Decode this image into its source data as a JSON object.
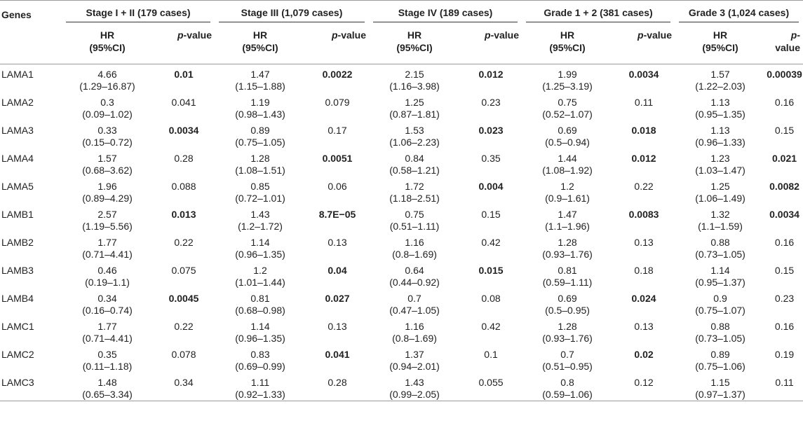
{
  "header": {
    "genes_label": "Genes",
    "groups": [
      "Stage I + II (179 cases)",
      "Stage III (1,079 cases)",
      "Stage IV (189 cases)",
      "Grade 1 + 2 (381 cases)",
      "Grade 3 (1,024 cases)"
    ],
    "hr_line1": "HR",
    "hr_line2": "(95%CI)",
    "p_italic": "p",
    "p_suffix": "-value"
  },
  "rows": [
    {
      "gene": "LAMA1",
      "cells": [
        {
          "hr": "4.66",
          "ci": "(1.29–16.87)",
          "p": "0.01",
          "bold": true
        },
        {
          "hr": "1.47",
          "ci": "(1.15–1.88)",
          "p": "0.0022",
          "bold": true
        },
        {
          "hr": "2.15",
          "ci": "(1.16–3.98)",
          "p": "0.012",
          "bold": true
        },
        {
          "hr": "1.99",
          "ci": "(1.25–3.19)",
          "p": "0.0034",
          "bold": true
        },
        {
          "hr": "1.57",
          "ci": "(1.22–2.03)",
          "p": "0.00039",
          "bold": true
        }
      ]
    },
    {
      "gene": "LAMA2",
      "cells": [
        {
          "hr": "0.3",
          "ci": "(0.09–1.02)",
          "p": "0.041",
          "bold": false
        },
        {
          "hr": "1.19",
          "ci": "(0.98–1.43)",
          "p": "0.079",
          "bold": false
        },
        {
          "hr": "1.25",
          "ci": "(0.87–1.81)",
          "p": "0.23",
          "bold": false
        },
        {
          "hr": "0.75",
          "ci": "(0.52–1.07)",
          "p": "0.11",
          "bold": false
        },
        {
          "hr": "1.13",
          "ci": "(0.95–1.35)",
          "p": "0.16",
          "bold": false
        }
      ]
    },
    {
      "gene": "LAMA3",
      "cells": [
        {
          "hr": "0.33",
          "ci": "(0.15–0.72)",
          "p": "0.0034",
          "bold": true
        },
        {
          "hr": "0.89",
          "ci": "(0.75–1.05)",
          "p": "0.17",
          "bold": false
        },
        {
          "hr": "1.53",
          "ci": "(1.06–2.23)",
          "p": "0.023",
          "bold": true
        },
        {
          "hr": "0.69",
          "ci": "(0.5–0.94)",
          "p": "0.018",
          "bold": true
        },
        {
          "hr": "1.13",
          "ci": "(0.96–1.33)",
          "p": "0.15",
          "bold": false
        }
      ]
    },
    {
      "gene": "LAMA4",
      "cells": [
        {
          "hr": "1.57",
          "ci": "(0.68–3.62)",
          "p": "0.28",
          "bold": false
        },
        {
          "hr": "1.28",
          "ci": "(1.08–1.51)",
          "p": "0.0051",
          "bold": true
        },
        {
          "hr": "0.84",
          "ci": "(0.58–1.21)",
          "p": "0.35",
          "bold": false
        },
        {
          "hr": "1.44",
          "ci": "(1.08–1.92)",
          "p": "0.012",
          "bold": true
        },
        {
          "hr": "1.23",
          "ci": "(1.03–1.47)",
          "p": "0.021",
          "bold": true
        }
      ]
    },
    {
      "gene": "LAMA5",
      "cells": [
        {
          "hr": "1.96",
          "ci": "(0.89–4.29)",
          "p": "0.088",
          "bold": false
        },
        {
          "hr": "0.85",
          "ci": "(0.72–1.01)",
          "p": "0.06",
          "bold": false
        },
        {
          "hr": "1.72",
          "ci": "(1.18–2.51)",
          "p": "0.004",
          "bold": true
        },
        {
          "hr": "1.2",
          "ci": "(0.9–1.61)",
          "p": "0.22",
          "bold": false
        },
        {
          "hr": "1.25",
          "ci": "(1.06–1.49)",
          "p": "0.0082",
          "bold": true
        }
      ]
    },
    {
      "gene": "LAMB1",
      "cells": [
        {
          "hr": "2.57",
          "ci": "(1.19–5.56)",
          "p": "0.013",
          "bold": true
        },
        {
          "hr": "1.43",
          "ci": "(1.2–1.72)",
          "p": "8.7E−05",
          "bold": true
        },
        {
          "hr": "0.75",
          "ci": "(0.51–1.11)",
          "p": "0.15",
          "bold": false
        },
        {
          "hr": "1.47",
          "ci": "(1.1–1.96)",
          "p": "0.0083",
          "bold": true
        },
        {
          "hr": "1.32",
          "ci": "(1.1–1.59)",
          "p": "0.0034",
          "bold": true
        }
      ]
    },
    {
      "gene": "LAMB2",
      "cells": [
        {
          "hr": "1.77",
          "ci": "(0.71–4.41)",
          "p": "0.22",
          "bold": false
        },
        {
          "hr": "1.14",
          "ci": "(0.96–1.35)",
          "p": "0.13",
          "bold": false
        },
        {
          "hr": "1.16",
          "ci": "(0.8–1.69)",
          "p": "0.42",
          "bold": false
        },
        {
          "hr": "1.28",
          "ci": "(0.93–1.76)",
          "p": "0.13",
          "bold": false
        },
        {
          "hr": "0.88",
          "ci": "(0.73–1.05)",
          "p": "0.16",
          "bold": false
        }
      ]
    },
    {
      "gene": "LAMB3",
      "cells": [
        {
          "hr": "0.46",
          "ci": "(0.19–1.1)",
          "p": "0.075",
          "bold": false
        },
        {
          "hr": "1.2",
          "ci": "(1.01–1.44)",
          "p": "0.04",
          "bold": true
        },
        {
          "hr": "0.64",
          "ci": "(0.44–0.92)",
          "p": "0.015",
          "bold": true
        },
        {
          "hr": "0.81",
          "ci": "(0.59–1.11)",
          "p": "0.18",
          "bold": false
        },
        {
          "hr": "1.14",
          "ci": "(0.95–1.37)",
          "p": "0.15",
          "bold": false
        }
      ]
    },
    {
      "gene": "LAMB4",
      "cells": [
        {
          "hr": "0.34",
          "ci": "(0.16–0.74)",
          "p": "0.0045",
          "bold": true
        },
        {
          "hr": "0.81",
          "ci": "(0.68–0.98)",
          "p": "0.027",
          "bold": true
        },
        {
          "hr": "0.7",
          "ci": "(0.47–1.05)",
          "p": "0.08",
          "bold": false
        },
        {
          "hr": "0.69",
          "ci": "(0.5–0.95)",
          "p": "0.024",
          "bold": true
        },
        {
          "hr": "0.9",
          "ci": "(0.75–1.07)",
          "p": "0.23",
          "bold": false
        }
      ]
    },
    {
      "gene": "LAMC1",
      "cells": [
        {
          "hr": "1.77",
          "ci": "(0.71–4.41)",
          "p": "0.22",
          "bold": false
        },
        {
          "hr": "1.14",
          "ci": "(0.96–1.35)",
          "p": "0.13",
          "bold": false
        },
        {
          "hr": "1.16",
          "ci": "(0.8–1.69)",
          "p": "0.42",
          "bold": false
        },
        {
          "hr": "1.28",
          "ci": "(0.93–1.76)",
          "p": "0.13",
          "bold": false
        },
        {
          "hr": "0.88",
          "ci": "(0.73–1.05)",
          "p": "0.16",
          "bold": false
        }
      ]
    },
    {
      "gene": "LAMC2",
      "cells": [
        {
          "hr": "0.35",
          "ci": "(0.11–1.18)",
          "p": "0.078",
          "bold": false
        },
        {
          "hr": "0.83",
          "ci": "(0.69–0.99)",
          "p": "0.041",
          "bold": true
        },
        {
          "hr": "1.37",
          "ci": "(0.94–2.01)",
          "p": "0.1",
          "bold": false
        },
        {
          "hr": "0.7",
          "ci": "(0.51–0.95)",
          "p": "0.02",
          "bold": true
        },
        {
          "hr": "0.89",
          "ci": "(0.75–1.06)",
          "p": "0.19",
          "bold": false
        }
      ]
    },
    {
      "gene": "LAMC3",
      "cells": [
        {
          "hr": "1.48",
          "ci": "(0.65–3.34)",
          "p": "0.34",
          "bold": false
        },
        {
          "hr": "1.11",
          "ci": "(0.92–1.33)",
          "p": "0.28",
          "bold": false
        },
        {
          "hr": "1.43",
          "ci": "(0.99–2.05)",
          "p": "0.055",
          "bold": false
        },
        {
          "hr": "0.8",
          "ci": "(0.59–1.06)",
          "p": "0.12",
          "bold": false
        },
        {
          "hr": "1.15",
          "ci": "(0.97–1.37)",
          "p": "0.11",
          "bold": false
        }
      ]
    }
  ]
}
